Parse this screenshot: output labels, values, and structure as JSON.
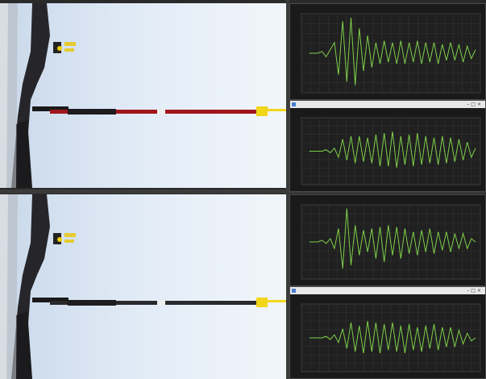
{
  "photos": [
    {
      "arrow_color": "#a0161c",
      "label": "arrow-red"
    },
    {
      "arrow_color": "#2a2a2e",
      "label": "arrow-black"
    }
  ],
  "panels": [
    {
      "title": "",
      "header": "",
      "signal": [
        0,
        0,
        0,
        0.05,
        -0.1,
        0.1,
        0.3,
        -0.6,
        0.9,
        -0.8,
        1.0,
        -0.9,
        0.7,
        -0.5,
        0.5,
        -0.4,
        0.3,
        -0.3,
        0.35,
        -0.25,
        0.3,
        -0.3,
        0.35,
        -0.3,
        0.3,
        -0.25,
        0.35,
        -0.3,
        0.3,
        -0.25,
        0.3,
        -0.3,
        0.25,
        -0.2,
        0.3,
        -0.2,
        0.25,
        -0.25,
        0.2,
        -0.15,
        0.1
      ]
    },
    {
      "title": "",
      "header": "",
      "signal": [
        0,
        0,
        0,
        0,
        0.05,
        -0.05,
        0.1,
        -0.2,
        0.4,
        -0.3,
        0.5,
        -0.4,
        0.5,
        -0.35,
        0.45,
        -0.4,
        0.55,
        -0.5,
        0.6,
        -0.5,
        0.65,
        -0.55,
        0.5,
        -0.45,
        0.55,
        -0.5,
        0.6,
        -0.45,
        0.5,
        -0.4,
        0.45,
        -0.45,
        0.5,
        -0.4,
        0.45,
        -0.35,
        0.4,
        -0.3,
        0.3,
        -0.2,
        0.1
      ]
    },
    {
      "title": "",
      "header": "",
      "signal": [
        0,
        0,
        0,
        0.05,
        -0.05,
        0.1,
        -0.2,
        0.4,
        -0.8,
        1.0,
        -0.7,
        0.5,
        -0.4,
        0.35,
        -0.3,
        0.4,
        -0.5,
        0.45,
        -0.6,
        0.5,
        -0.4,
        0.45,
        -0.5,
        0.4,
        -0.35,
        0.3,
        -0.4,
        0.35,
        -0.3,
        0.4,
        -0.35,
        0.3,
        -0.25,
        0.3,
        -0.3,
        0.25,
        -0.2,
        0.25,
        -0.2,
        0.1,
        0
      ]
    },
    {
      "title": "",
      "header": "",
      "signal": [
        0,
        0,
        0,
        0,
        0.05,
        -0.05,
        0.1,
        -0.15,
        0.3,
        -0.35,
        0.5,
        -0.45,
        0.4,
        -0.5,
        0.55,
        -0.45,
        0.5,
        -0.5,
        0.45,
        -0.4,
        0.5,
        -0.45,
        0.4,
        -0.5,
        0.45,
        -0.4,
        0.35,
        -0.45,
        0.4,
        -0.35,
        0.45,
        -0.4,
        0.35,
        -0.3,
        0.35,
        -0.3,
        0.25,
        -0.2,
        0.15,
        -0.1,
        0
      ]
    }
  ]
}
